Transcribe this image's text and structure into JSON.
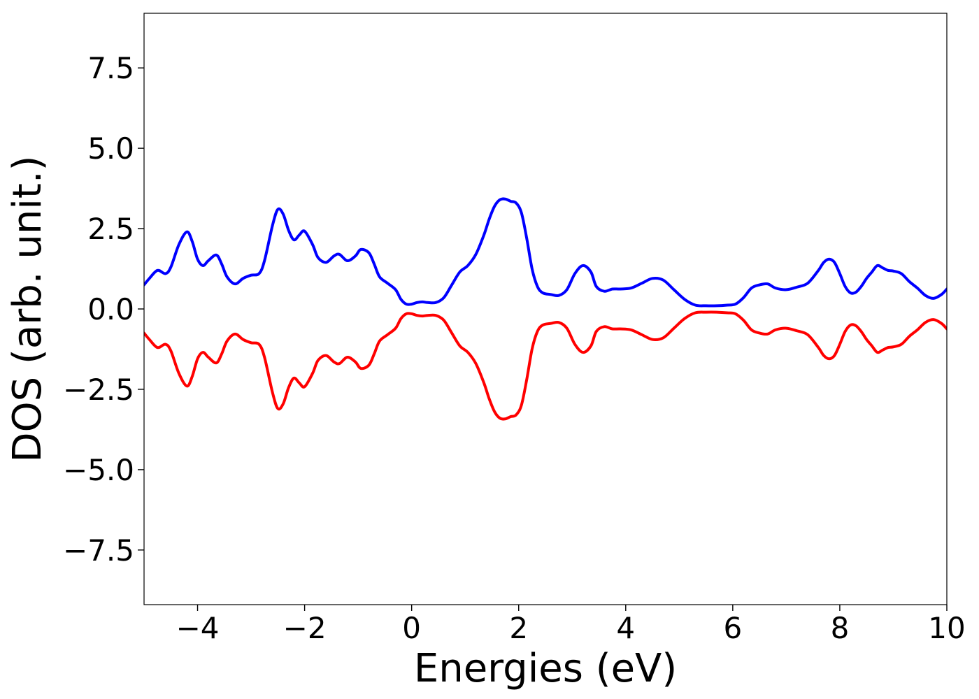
{
  "chart_data": {
    "type": "line",
    "title": "",
    "xlabel": "Energies (eV)",
    "ylabel": "DOS (arb. unit.)",
    "xlim": [
      -5,
      10
    ],
    "ylim": [
      -9.2,
      9.2
    ],
    "xticks": [
      -4,
      -2,
      0,
      2,
      4,
      6,
      8,
      10
    ],
    "xtick_labels": [
      "−4",
      "−2",
      "0",
      "2",
      "4",
      "6",
      "8",
      "10"
    ],
    "yticks": [
      -7.5,
      -5.0,
      -2.5,
      0.0,
      2.5,
      5.0,
      7.5
    ],
    "ytick_labels": [
      "−7.5",
      "−5.0",
      "−2.5",
      "0.0",
      "2.5",
      "5.0",
      "7.5"
    ],
    "grid": false,
    "legend": false,
    "series": [
      {
        "color": "#0000ff",
        "x": [
          -5.0,
          -4.9,
          -4.75,
          -4.6,
          -4.5,
          -4.35,
          -4.2,
          -4.1,
          -4.0,
          -3.9,
          -3.8,
          -3.65,
          -3.55,
          -3.45,
          -3.3,
          -3.15,
          -3.0,
          -2.85,
          -2.75,
          -2.6,
          -2.5,
          -2.4,
          -2.3,
          -2.2,
          -2.1,
          -2.0,
          -1.85,
          -1.75,
          -1.6,
          -1.45,
          -1.35,
          -1.2,
          -1.05,
          -0.95,
          -0.8,
          -0.7,
          -0.6,
          -0.45,
          -0.3,
          -0.2,
          -0.1,
          0.0,
          0.1,
          0.2,
          0.3,
          0.45,
          0.6,
          0.75,
          0.9,
          1.05,
          1.2,
          1.35,
          1.45,
          1.55,
          1.65,
          1.75,
          1.85,
          1.95,
          2.05,
          2.15,
          2.25,
          2.35,
          2.45,
          2.6,
          2.75,
          2.9,
          3.05,
          3.2,
          3.35,
          3.45,
          3.6,
          3.75,
          3.9,
          4.1,
          4.3,
          4.5,
          4.7,
          4.9,
          5.1,
          5.3,
          5.5,
          5.7,
          5.9,
          6.05,
          6.2,
          6.35,
          6.5,
          6.65,
          6.8,
          7.0,
          7.2,
          7.4,
          7.6,
          7.7,
          7.8,
          7.9,
          8.0,
          8.1,
          8.2,
          8.3,
          8.4,
          8.5,
          8.6,
          8.7,
          8.8,
          8.9,
          9.0,
          9.15,
          9.3,
          9.45,
          9.6,
          9.75,
          9.9,
          10.0
        ],
        "y": [
          0.75,
          0.95,
          1.2,
          1.1,
          1.3,
          2.0,
          2.4,
          2.1,
          1.55,
          1.35,
          1.5,
          1.68,
          1.4,
          1.0,
          0.78,
          0.95,
          1.05,
          1.1,
          1.5,
          2.6,
          3.1,
          2.95,
          2.45,
          2.15,
          2.3,
          2.42,
          2.0,
          1.6,
          1.45,
          1.65,
          1.7,
          1.5,
          1.65,
          1.85,
          1.75,
          1.4,
          1.0,
          0.8,
          0.6,
          0.3,
          0.15,
          0.15,
          0.2,
          0.22,
          0.2,
          0.2,
          0.35,
          0.75,
          1.15,
          1.35,
          1.7,
          2.3,
          2.8,
          3.2,
          3.4,
          3.42,
          3.35,
          3.3,
          3.0,
          2.2,
          1.25,
          0.7,
          0.5,
          0.45,
          0.42,
          0.6,
          1.1,
          1.35,
          1.15,
          0.7,
          0.55,
          0.62,
          0.62,
          0.65,
          0.8,
          0.95,
          0.9,
          0.6,
          0.3,
          0.12,
          0.1,
          0.1,
          0.12,
          0.15,
          0.35,
          0.65,
          0.75,
          0.78,
          0.65,
          0.6,
          0.68,
          0.8,
          1.2,
          1.45,
          1.55,
          1.45,
          1.1,
          0.7,
          0.5,
          0.52,
          0.7,
          0.95,
          1.15,
          1.35,
          1.28,
          1.2,
          1.18,
          1.1,
          0.85,
          0.65,
          0.42,
          0.33,
          0.45,
          0.62
        ]
      },
      {
        "color": "#ff0000",
        "x": [
          -5.0,
          -4.9,
          -4.75,
          -4.6,
          -4.5,
          -4.35,
          -4.2,
          -4.1,
          -4.0,
          -3.9,
          -3.8,
          -3.65,
          -3.55,
          -3.45,
          -3.3,
          -3.15,
          -3.0,
          -2.85,
          -2.75,
          -2.6,
          -2.5,
          -2.4,
          -2.3,
          -2.2,
          -2.1,
          -2.0,
          -1.85,
          -1.75,
          -1.6,
          -1.45,
          -1.35,
          -1.2,
          -1.05,
          -0.95,
          -0.8,
          -0.7,
          -0.6,
          -0.45,
          -0.3,
          -0.2,
          -0.1,
          0.0,
          0.1,
          0.2,
          0.3,
          0.45,
          0.6,
          0.75,
          0.9,
          1.05,
          1.2,
          1.35,
          1.45,
          1.55,
          1.65,
          1.75,
          1.85,
          1.95,
          2.05,
          2.15,
          2.25,
          2.35,
          2.45,
          2.6,
          2.75,
          2.9,
          3.05,
          3.2,
          3.35,
          3.45,
          3.6,
          3.75,
          3.9,
          4.1,
          4.3,
          4.5,
          4.7,
          4.9,
          5.1,
          5.3,
          5.5,
          5.7,
          5.9,
          6.05,
          6.2,
          6.35,
          6.5,
          6.65,
          6.8,
          7.0,
          7.2,
          7.4,
          7.6,
          7.7,
          7.8,
          7.9,
          8.0,
          8.1,
          8.2,
          8.3,
          8.4,
          8.5,
          8.6,
          8.7,
          8.8,
          8.9,
          9.0,
          9.15,
          9.3,
          9.45,
          9.6,
          9.75,
          9.9,
          10.0
        ],
        "y": [
          -0.75,
          -0.95,
          -1.2,
          -1.1,
          -1.3,
          -2.0,
          -2.4,
          -2.1,
          -1.55,
          -1.35,
          -1.5,
          -1.68,
          -1.4,
          -1.0,
          -0.78,
          -0.95,
          -1.05,
          -1.1,
          -1.5,
          -2.6,
          -3.1,
          -2.95,
          -2.45,
          -2.15,
          -2.3,
          -2.42,
          -2.0,
          -1.6,
          -1.45,
          -1.65,
          -1.7,
          -1.5,
          -1.65,
          -1.85,
          -1.75,
          -1.4,
          -1.0,
          -0.8,
          -0.6,
          -0.3,
          -0.15,
          -0.15,
          -0.2,
          -0.22,
          -0.2,
          -0.2,
          -0.35,
          -0.75,
          -1.15,
          -1.35,
          -1.7,
          -2.3,
          -2.8,
          -3.2,
          -3.4,
          -3.42,
          -3.35,
          -3.3,
          -3.0,
          -2.2,
          -1.25,
          -0.7,
          -0.5,
          -0.45,
          -0.42,
          -0.6,
          -1.1,
          -1.35,
          -1.15,
          -0.7,
          -0.55,
          -0.62,
          -0.62,
          -0.65,
          -0.8,
          -0.95,
          -0.9,
          -0.6,
          -0.3,
          -0.12,
          -0.1,
          -0.1,
          -0.12,
          -0.15,
          -0.35,
          -0.65,
          -0.75,
          -0.78,
          -0.65,
          -0.6,
          -0.68,
          -0.8,
          -1.2,
          -1.45,
          -1.55,
          -1.45,
          -1.1,
          -0.7,
          -0.5,
          -0.52,
          -0.7,
          -0.95,
          -1.15,
          -1.35,
          -1.28,
          -1.2,
          -1.18,
          -1.1,
          -0.85,
          -0.65,
          -0.42,
          -0.33,
          -0.45,
          -0.62
        ]
      }
    ]
  }
}
